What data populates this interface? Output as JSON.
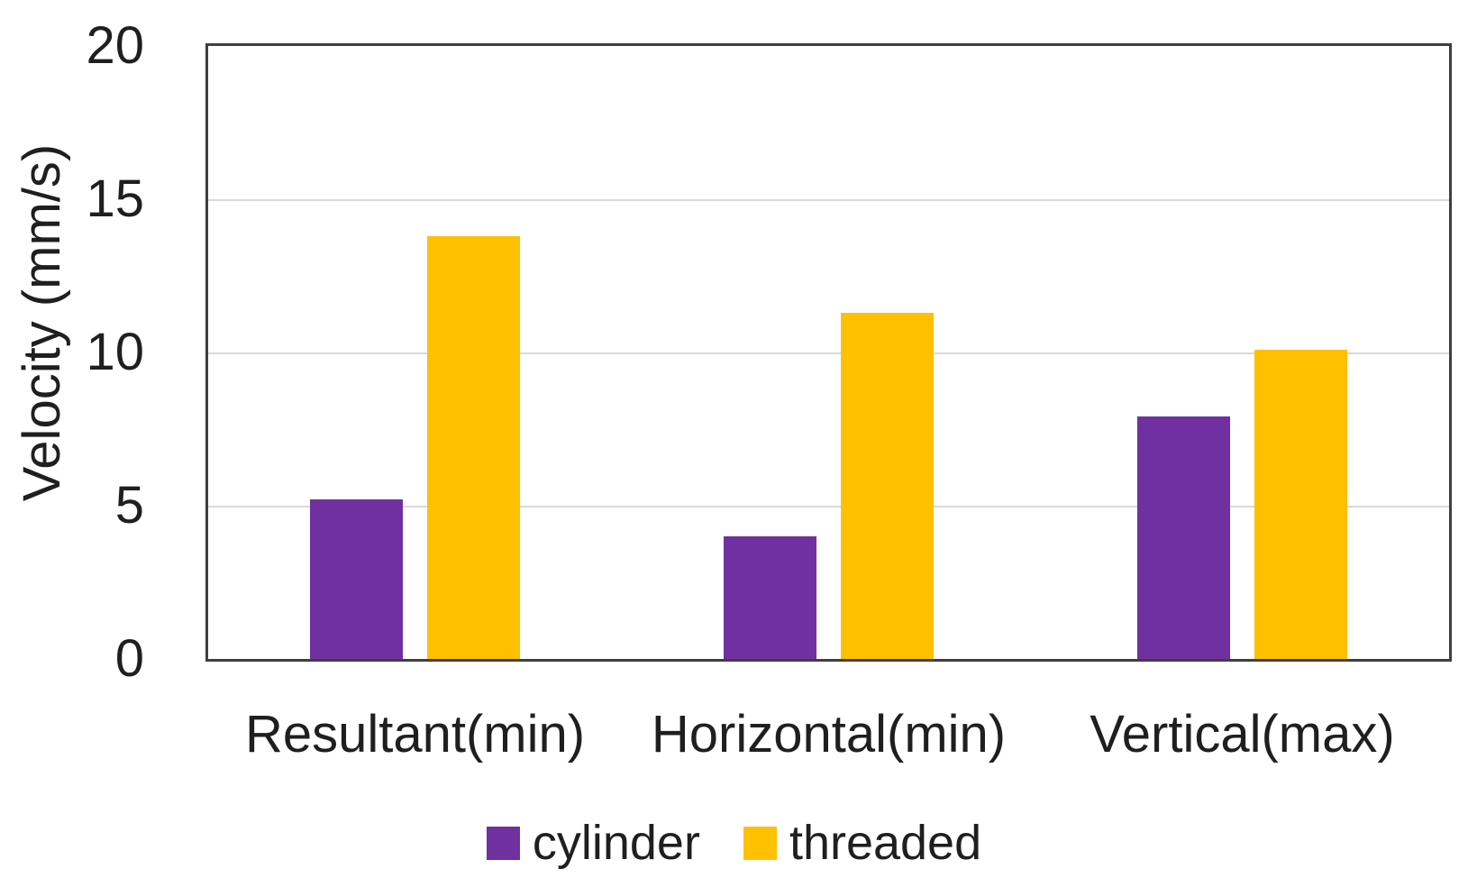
{
  "chart_data": {
    "type": "bar",
    "title": "",
    "xlabel": "",
    "ylabel": "Velocity (mm/s)",
    "categories": [
      "Resultant(min)",
      "Horizontal(min)",
      "Vertical(max)"
    ],
    "series": [
      {
        "name": "cylinder",
        "color": "#7030A0",
        "values": [
          5.2,
          4.0,
          7.9
        ]
      },
      {
        "name": "threaded",
        "color": "#FFC000",
        "values": [
          13.8,
          11.3,
          10.1
        ]
      }
    ],
    "ylim": [
      0,
      20
    ],
    "yticks": [
      0,
      5,
      10,
      15,
      20
    ],
    "grid": "horizontal",
    "legend_position": "bottom",
    "colors": {
      "axis_border": "#3f3f3f",
      "gridline": "#d9d9d9",
      "text": "#1f1f1f",
      "background": "#ffffff"
    }
  }
}
